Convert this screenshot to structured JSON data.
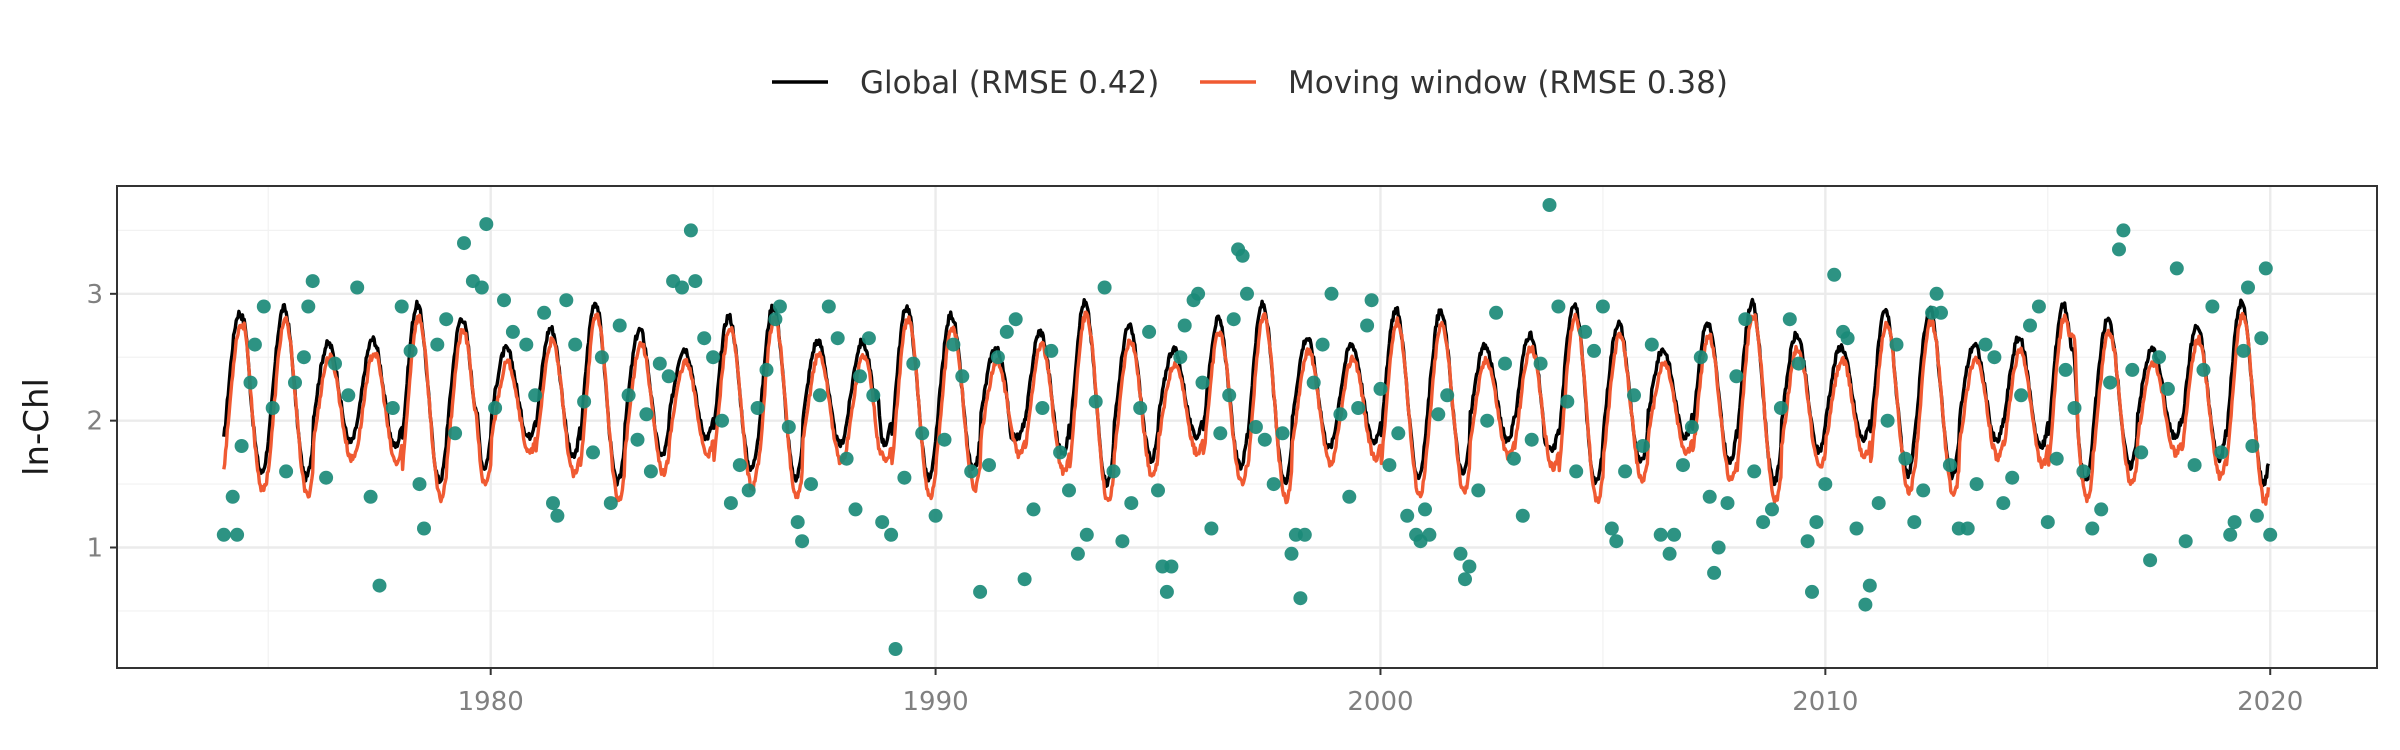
{
  "chart_data": {
    "type": "line",
    "title": "",
    "xlabel": "",
    "ylabel": "ln-Chl",
    "xlim": [
      1971.6,
      2022.4
    ],
    "ylim": [
      0.05,
      3.85
    ],
    "x_ticks": [
      1980,
      1990,
      2000,
      2010,
      2020
    ],
    "x_tick_labels": [
      "1980",
      "1990",
      "2000",
      "2010",
      "2020"
    ],
    "y_ticks": [
      1,
      2,
      3
    ],
    "y_tick_labels": [
      "1",
      "2",
      "3"
    ],
    "grid": true,
    "legend_position": "top",
    "series": [
      {
        "name": "Global (RMSE 0.42)",
        "color": "#000000",
        "mean": 2.22,
        "amplitude": 0.62,
        "peak_phase": 0.35,
        "x_start": 1974.0,
        "x_end": 2019.97,
        "step": 0.02,
        "notable_peaks": [
          [
            1974.5,
            2.95
          ],
          [
            1979.7,
            3.0
          ],
          [
            1988.7,
            3.05
          ],
          [
            1991.7,
            2.72
          ],
          [
            2003.7,
            2.72
          ],
          [
            2004.7,
            2.8
          ],
          [
            2015.6,
            3.1
          ]
        ]
      },
      {
        "name": "Moving window (RMSE 0.38)",
        "color": "#f05a32",
        "mean": 2.1,
        "amplitude": 0.64,
        "peak_phase": 0.38,
        "x_start": 1974.0,
        "x_end": 2019.97,
        "step": 0.02,
        "notable_peaks": [
          [
            1974.5,
            2.85
          ],
          [
            1979.7,
            2.85
          ],
          [
            1988.7,
            2.65
          ],
          [
            2015.6,
            3.15
          ]
        ]
      },
      {
        "name": "Observations",
        "type": "scatter",
        "color": "#1b8a78",
        "points": [
          [
            1974.0,
            1.1
          ],
          [
            1974.2,
            1.4
          ],
          [
            1974.3,
            1.1
          ],
          [
            1974.4,
            1.8
          ],
          [
            1974.6,
            2.3
          ],
          [
            1974.7,
            2.6
          ],
          [
            1974.9,
            2.9
          ],
          [
            1975.1,
            2.1
          ],
          [
            1975.4,
            1.6
          ],
          [
            1975.6,
            2.3
          ],
          [
            1975.8,
            2.5
          ],
          [
            1975.9,
            2.9
          ],
          [
            1976.0,
            3.1
          ],
          [
            1976.3,
            1.55
          ],
          [
            1976.5,
            2.45
          ],
          [
            1976.8,
            2.2
          ],
          [
            1977.0,
            3.05
          ],
          [
            1977.3,
            1.4
          ],
          [
            1977.5,
            0.7
          ],
          [
            1977.8,
            2.1
          ],
          [
            1978.0,
            2.9
          ],
          [
            1978.2,
            2.55
          ],
          [
            1978.4,
            1.5
          ],
          [
            1978.5,
            1.15
          ],
          [
            1978.8,
            2.6
          ],
          [
            1979.0,
            2.8
          ],
          [
            1979.2,
            1.9
          ],
          [
            1979.4,
            3.4
          ],
          [
            1979.6,
            3.1
          ],
          [
            1979.8,
            3.05
          ],
          [
            1979.9,
            3.55
          ],
          [
            1980.1,
            2.1
          ],
          [
            1980.3,
            2.95
          ],
          [
            1980.5,
            2.7
          ],
          [
            1980.8,
            2.6
          ],
          [
            1981.0,
            2.2
          ],
          [
            1981.2,
            2.85
          ],
          [
            1981.4,
            1.35
          ],
          [
            1981.5,
            1.25
          ],
          [
            1981.7,
            2.95
          ],
          [
            1981.9,
            2.6
          ],
          [
            1982.1,
            2.15
          ],
          [
            1982.3,
            1.75
          ],
          [
            1982.5,
            2.5
          ],
          [
            1982.7,
            1.35
          ],
          [
            1982.9,
            2.75
          ],
          [
            1983.1,
            2.2
          ],
          [
            1983.3,
            1.85
          ],
          [
            1983.5,
            2.05
          ],
          [
            1983.6,
            1.6
          ],
          [
            1983.8,
            2.45
          ],
          [
            1984.0,
            2.35
          ],
          [
            1984.1,
            3.1
          ],
          [
            1984.3,
            3.05
          ],
          [
            1984.5,
            3.5
          ],
          [
            1984.6,
            3.1
          ],
          [
            1984.8,
            2.65
          ],
          [
            1985.0,
            2.5
          ],
          [
            1985.2,
            2.0
          ],
          [
            1985.4,
            1.35
          ],
          [
            1985.6,
            1.65
          ],
          [
            1985.8,
            1.45
          ],
          [
            1986.0,
            2.1
          ],
          [
            1986.2,
            2.4
          ],
          [
            1986.4,
            2.8
          ],
          [
            1986.5,
            2.9
          ],
          [
            1986.7,
            1.95
          ],
          [
            1986.9,
            1.2
          ],
          [
            1987.0,
            1.05
          ],
          [
            1987.2,
            1.5
          ],
          [
            1987.4,
            2.2
          ],
          [
            1987.6,
            2.9
          ],
          [
            1987.8,
            2.65
          ],
          [
            1988.0,
            1.7
          ],
          [
            1988.2,
            1.3
          ],
          [
            1988.3,
            2.35
          ],
          [
            1988.5,
            2.65
          ],
          [
            1988.6,
            2.2
          ],
          [
            1988.8,
            1.2
          ],
          [
            1989.0,
            1.1
          ],
          [
            1989.1,
            0.2
          ],
          [
            1989.3,
            1.55
          ],
          [
            1989.5,
            2.45
          ],
          [
            1989.7,
            1.9
          ],
          [
            1990.0,
            1.25
          ],
          [
            1990.2,
            1.85
          ],
          [
            1990.4,
            2.6
          ],
          [
            1990.6,
            2.35
          ],
          [
            1990.8,
            1.6
          ],
          [
            1991.0,
            0.65
          ],
          [
            1991.2,
            1.65
          ],
          [
            1991.4,
            2.5
          ],
          [
            1991.6,
            2.7
          ],
          [
            1991.8,
            2.8
          ],
          [
            1992.0,
            0.75
          ],
          [
            1992.2,
            1.3
          ],
          [
            1992.4,
            2.1
          ],
          [
            1992.6,
            2.55
          ],
          [
            1992.8,
            1.75
          ],
          [
            1993.0,
            1.45
          ],
          [
            1993.2,
            0.95
          ],
          [
            1993.4,
            1.1
          ],
          [
            1993.6,
            2.15
          ],
          [
            1993.8,
            3.05
          ],
          [
            1994.0,
            1.6
          ],
          [
            1994.2,
            1.05
          ],
          [
            1994.4,
            1.35
          ],
          [
            1994.6,
            2.1
          ],
          [
            1994.8,
            2.7
          ],
          [
            1995.0,
            1.45
          ],
          [
            1995.1,
            0.85
          ],
          [
            1995.2,
            0.65
          ],
          [
            1995.3,
            0.85
          ],
          [
            1995.5,
            2.5
          ],
          [
            1995.6,
            2.75
          ],
          [
            1995.8,
            2.95
          ],
          [
            1995.9,
            3.0
          ],
          [
            1996.0,
            2.3
          ],
          [
            1996.2,
            1.15
          ],
          [
            1996.4,
            1.9
          ],
          [
            1996.6,
            2.2
          ],
          [
            1996.7,
            2.8
          ],
          [
            1996.8,
            3.35
          ],
          [
            1996.9,
            3.3
          ],
          [
            1997.0,
            3.0
          ],
          [
            1997.2,
            1.95
          ],
          [
            1997.4,
            1.85
          ],
          [
            1997.6,
            1.5
          ],
          [
            1997.8,
            1.9
          ],
          [
            1998.0,
            0.95
          ],
          [
            1998.1,
            1.1
          ],
          [
            1998.2,
            0.6
          ],
          [
            1998.3,
            1.1
          ],
          [
            1998.5,
            2.3
          ],
          [
            1998.7,
            2.6
          ],
          [
            1998.9,
            3.0
          ],
          [
            1999.1,
            2.05
          ],
          [
            1999.3,
            1.4
          ],
          [
            1999.5,
            2.1
          ],
          [
            1999.7,
            2.75
          ],
          [
            1999.8,
            2.95
          ],
          [
            2000.0,
            2.25
          ],
          [
            2000.2,
            1.65
          ],
          [
            2000.4,
            1.9
          ],
          [
            2000.6,
            1.25
          ],
          [
            2000.8,
            1.1
          ],
          [
            2000.9,
            1.05
          ],
          [
            2001.0,
            1.3
          ],
          [
            2001.1,
            1.1
          ],
          [
            2001.3,
            2.05
          ],
          [
            2001.5,
            2.2
          ],
          [
            2001.8,
            0.95
          ],
          [
            2001.9,
            0.75
          ],
          [
            2002.0,
            0.85
          ],
          [
            2002.2,
            1.45
          ],
          [
            2002.4,
            2.0
          ],
          [
            2002.6,
            2.85
          ],
          [
            2002.8,
            2.45
          ],
          [
            2003.0,
            1.7
          ],
          [
            2003.2,
            1.25
          ],
          [
            2003.4,
            1.85
          ],
          [
            2003.6,
            2.45
          ],
          [
            2003.8,
            3.7
          ],
          [
            2004.0,
            2.9
          ],
          [
            2004.2,
            2.15
          ],
          [
            2004.4,
            1.6
          ],
          [
            2004.6,
            2.7
          ],
          [
            2004.8,
            2.55
          ],
          [
            2005.0,
            2.9
          ],
          [
            2005.2,
            1.15
          ],
          [
            2005.3,
            1.05
          ],
          [
            2005.5,
            1.6
          ],
          [
            2005.7,
            2.2
          ],
          [
            2005.9,
            1.8
          ],
          [
            2006.1,
            2.6
          ],
          [
            2006.3,
            1.1
          ],
          [
            2006.5,
            0.95
          ],
          [
            2006.6,
            1.1
          ],
          [
            2006.8,
            1.65
          ],
          [
            2007.0,
            1.95
          ],
          [
            2007.2,
            2.5
          ],
          [
            2007.4,
            1.4
          ],
          [
            2007.5,
            0.8
          ],
          [
            2007.6,
            1.0
          ],
          [
            2007.8,
            1.35
          ],
          [
            2008.0,
            2.35
          ],
          [
            2008.2,
            2.8
          ],
          [
            2008.4,
            1.6
          ],
          [
            2008.6,
            1.2
          ],
          [
            2008.8,
            1.3
          ],
          [
            2009.0,
            2.1
          ],
          [
            2009.2,
            2.8
          ],
          [
            2009.4,
            2.45
          ],
          [
            2009.6,
            1.05
          ],
          [
            2009.7,
            0.65
          ],
          [
            2009.8,
            1.2
          ],
          [
            2010.0,
            1.5
          ],
          [
            2010.2,
            3.15
          ],
          [
            2010.4,
            2.7
          ],
          [
            2010.5,
            2.65
          ],
          [
            2010.7,
            1.15
          ],
          [
            2010.9,
            0.55
          ],
          [
            2011.0,
            0.7
          ],
          [
            2011.2,
            1.35
          ],
          [
            2011.4,
            2.0
          ],
          [
            2011.6,
            2.6
          ],
          [
            2011.8,
            1.7
          ],
          [
            2012.0,
            1.2
          ],
          [
            2012.2,
            1.45
          ],
          [
            2012.4,
            2.85
          ],
          [
            2012.5,
            3.0
          ],
          [
            2012.6,
            2.85
          ],
          [
            2012.8,
            1.65
          ],
          [
            2013.0,
            1.15
          ],
          [
            2013.2,
            1.15
          ],
          [
            2013.4,
            1.5
          ],
          [
            2013.6,
            2.6
          ],
          [
            2013.8,
            2.5
          ],
          [
            2014.0,
            1.35
          ],
          [
            2014.2,
            1.55
          ],
          [
            2014.4,
            2.2
          ],
          [
            2014.6,
            2.75
          ],
          [
            2014.8,
            2.9
          ],
          [
            2015.0,
            1.2
          ],
          [
            2015.2,
            1.7
          ],
          [
            2015.4,
            2.4
          ],
          [
            2015.6,
            2.1
          ],
          [
            2015.8,
            1.6
          ],
          [
            2016.0,
            1.15
          ],
          [
            2016.2,
            1.3
          ],
          [
            2016.4,
            2.3
          ],
          [
            2016.6,
            3.35
          ],
          [
            2016.7,
            3.5
          ],
          [
            2016.9,
            2.4
          ],
          [
            2017.1,
            1.75
          ],
          [
            2017.3,
            0.9
          ],
          [
            2017.5,
            2.5
          ],
          [
            2017.7,
            2.25
          ],
          [
            2017.9,
            3.2
          ],
          [
            2018.1,
            1.05
          ],
          [
            2018.3,
            1.65
          ],
          [
            2018.5,
            2.4
          ],
          [
            2018.7,
            2.9
          ],
          [
            2018.9,
            1.75
          ],
          [
            2019.1,
            1.1
          ],
          [
            2019.2,
            1.2
          ],
          [
            2019.4,
            2.55
          ],
          [
            2019.5,
            3.05
          ],
          [
            2019.6,
            1.8
          ],
          [
            2019.7,
            1.25
          ],
          [
            2019.8,
            2.65
          ],
          [
            2019.9,
            3.2
          ],
          [
            2020.0,
            1.1
          ]
        ]
      }
    ]
  }
}
